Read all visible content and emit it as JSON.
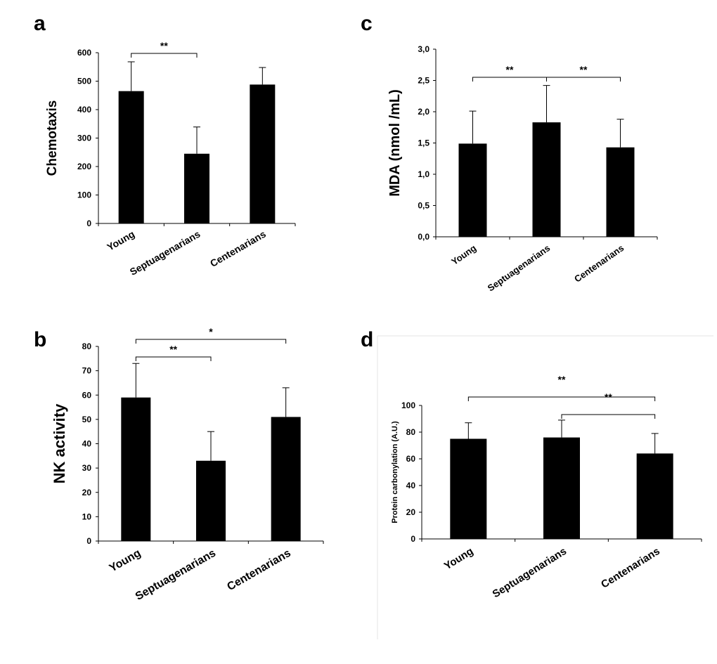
{
  "figure": {
    "letters": [
      "a",
      "c",
      "b",
      "d"
    ]
  },
  "chart_data": [
    {
      "panel": "a",
      "type": "bar",
      "title": "",
      "xlabel": "",
      "ylabel": "Chemotaxis",
      "categories": [
        "Young",
        "Septuagenarians",
        "Centenarians"
      ],
      "values": [
        465,
        245,
        488
      ],
      "errors": [
        103,
        94,
        60
      ],
      "ylim": [
        0,
        600
      ],
      "yticks": [
        "0",
        "100",
        "200",
        "300",
        "400",
        "500",
        "600"
      ],
      "significance": [
        {
          "from": 0,
          "to": 1,
          "label": "**"
        }
      ]
    },
    {
      "panel": "c",
      "type": "bar",
      "title": "",
      "xlabel": "",
      "ylabel": "MDA (nmol /mL)",
      "categories": [
        "Young",
        "Septuagenarians",
        "Centenarians"
      ],
      "values": [
        1.49,
        1.83,
        1.43
      ],
      "errors": [
        0.52,
        0.59,
        0.45
      ],
      "ylim": [
        0,
        3
      ],
      "yticks": [
        "0,0",
        "0,5",
        "1,0",
        "1,5",
        "2,0",
        "2,5",
        "3,0"
      ],
      "significance": [
        {
          "from": 0,
          "to": 1,
          "label": "**"
        },
        {
          "from": 1,
          "to": 2,
          "label": "**"
        }
      ]
    },
    {
      "panel": "b",
      "type": "bar",
      "title": "",
      "xlabel": "",
      "ylabel": "NK activity",
      "categories": [
        "Young",
        "Septuagenarians",
        "Centenarians"
      ],
      "values": [
        59,
        33,
        51
      ],
      "errors": [
        14,
        12,
        12
      ],
      "ylim": [
        0,
        80
      ],
      "yticks": [
        "0",
        "10",
        "20",
        "30",
        "40",
        "50",
        "60",
        "70",
        "80"
      ],
      "significance": [
        {
          "from": 0,
          "to": 1,
          "label": "**"
        },
        {
          "from": 0,
          "to": 2,
          "label": "*"
        }
      ]
    },
    {
      "panel": "d",
      "type": "bar",
      "title": "",
      "xlabel": "",
      "ylabel": "Protein carbonylation (A.U.)",
      "categories": [
        "Young",
        "Septuagenarians",
        "Centenarians"
      ],
      "values": [
        75,
        76,
        64
      ],
      "errors": [
        12,
        13,
        15
      ],
      "ylim": [
        0,
        100
      ],
      "yticks": [
        "0",
        "20",
        "40",
        "60",
        "80",
        "100"
      ],
      "significance": [
        {
          "from": 0,
          "to": 2,
          "label": "**"
        },
        {
          "from": 1,
          "to": 2,
          "label": "**"
        }
      ]
    }
  ]
}
